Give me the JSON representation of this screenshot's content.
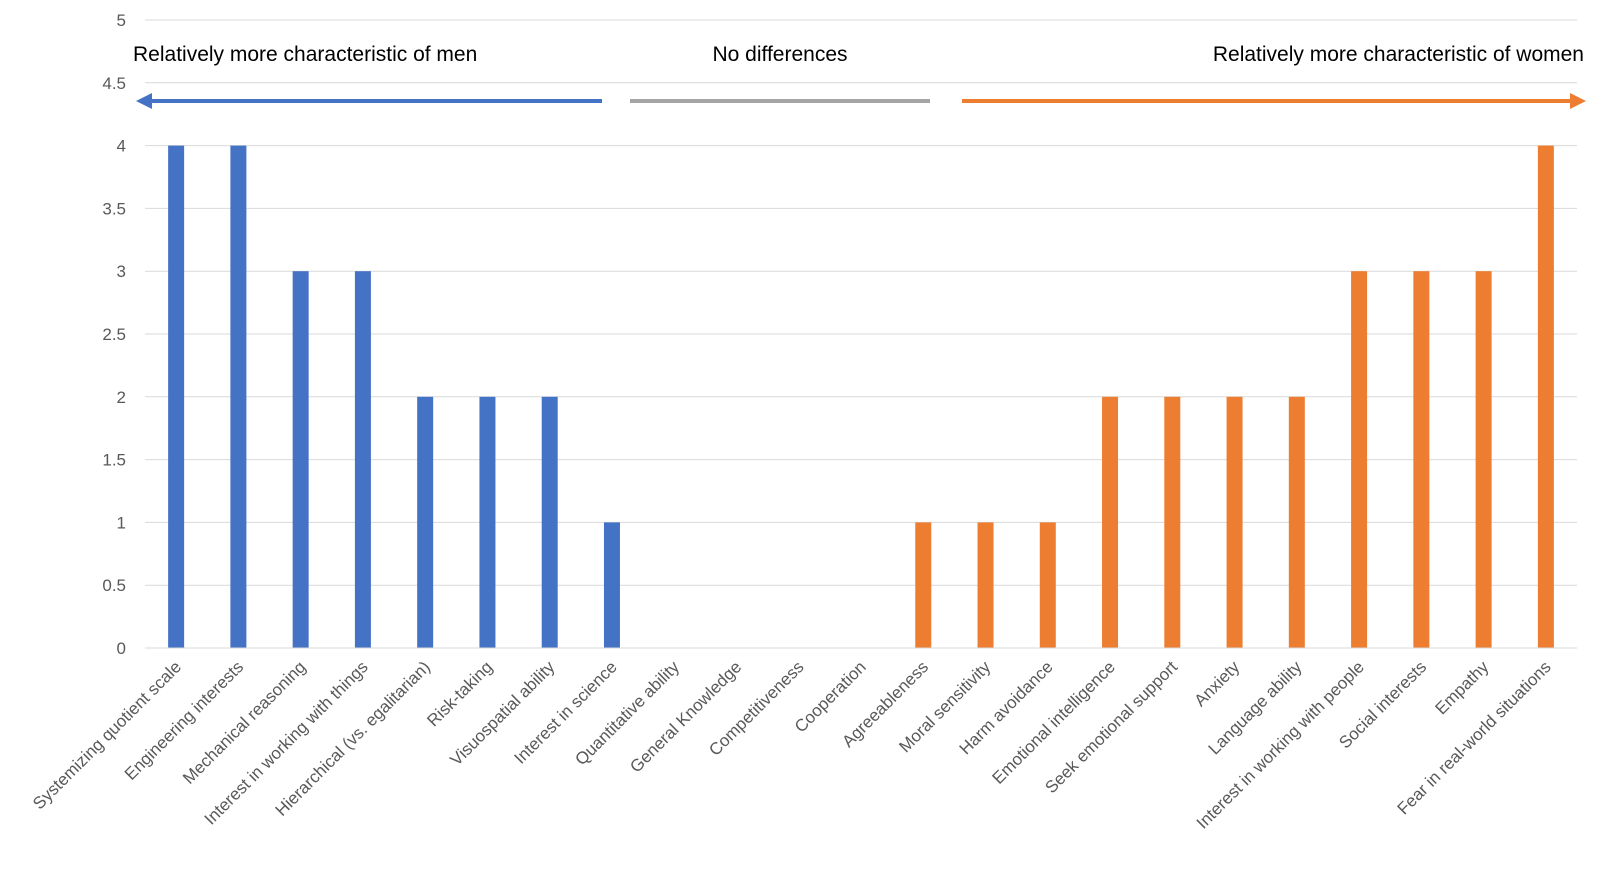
{
  "chart_data": {
    "type": "bar",
    "title": "",
    "xlabel": "",
    "ylabel": "",
    "ylim": [
      0,
      5
    ],
    "yticks": [
      0,
      0.5,
      1,
      1.5,
      2,
      2.5,
      3,
      3.5,
      4,
      4.5,
      5
    ],
    "ytick_labels": [
      "0",
      "0.5",
      "1",
      "1.5",
      "2",
      "2.5",
      "3",
      "3.5",
      "4",
      "4.5",
      "5"
    ],
    "grid": true,
    "categories": [
      "Systemizing quotient scale",
      "Engineering interests",
      "Mechanical reasoning",
      "Interest in working with things",
      "Hierarchical (vs. egalitarian)",
      "Risk-taking",
      "Visuospatial ability",
      "Interest in science",
      "Quantitative ability",
      "General Knowledge",
      "Competitiveness",
      "Cooperation",
      "Agreeableness",
      "Moral sensitivity",
      "Harm avoidance",
      "Emotional intelligence",
      "Seek emotional support",
      "Anxiety",
      "Language ability",
      "Interest in working with people",
      "Social interests",
      "Empathy",
      "Fear in real-world situations"
    ],
    "values": [
      4,
      4,
      3,
      3,
      2,
      2,
      2,
      1,
      0,
      0,
      0,
      0,
      1,
      1,
      1,
      2,
      2,
      2,
      2,
      3,
      3,
      3,
      4
    ],
    "bar_groups": [
      "men",
      "men",
      "men",
      "men",
      "men",
      "men",
      "men",
      "men",
      "none",
      "none",
      "none",
      "none",
      "women",
      "women",
      "women",
      "women",
      "women",
      "women",
      "women",
      "women",
      "women",
      "women",
      "women"
    ],
    "colors": {
      "men": "#4472c4",
      "women": "#ed7d31",
      "none": "#a5a5a5"
    },
    "annotations": {
      "men": "Relatively more characteristic of men",
      "none": "No differences",
      "women": "Relatively more characteristic of women"
    }
  }
}
